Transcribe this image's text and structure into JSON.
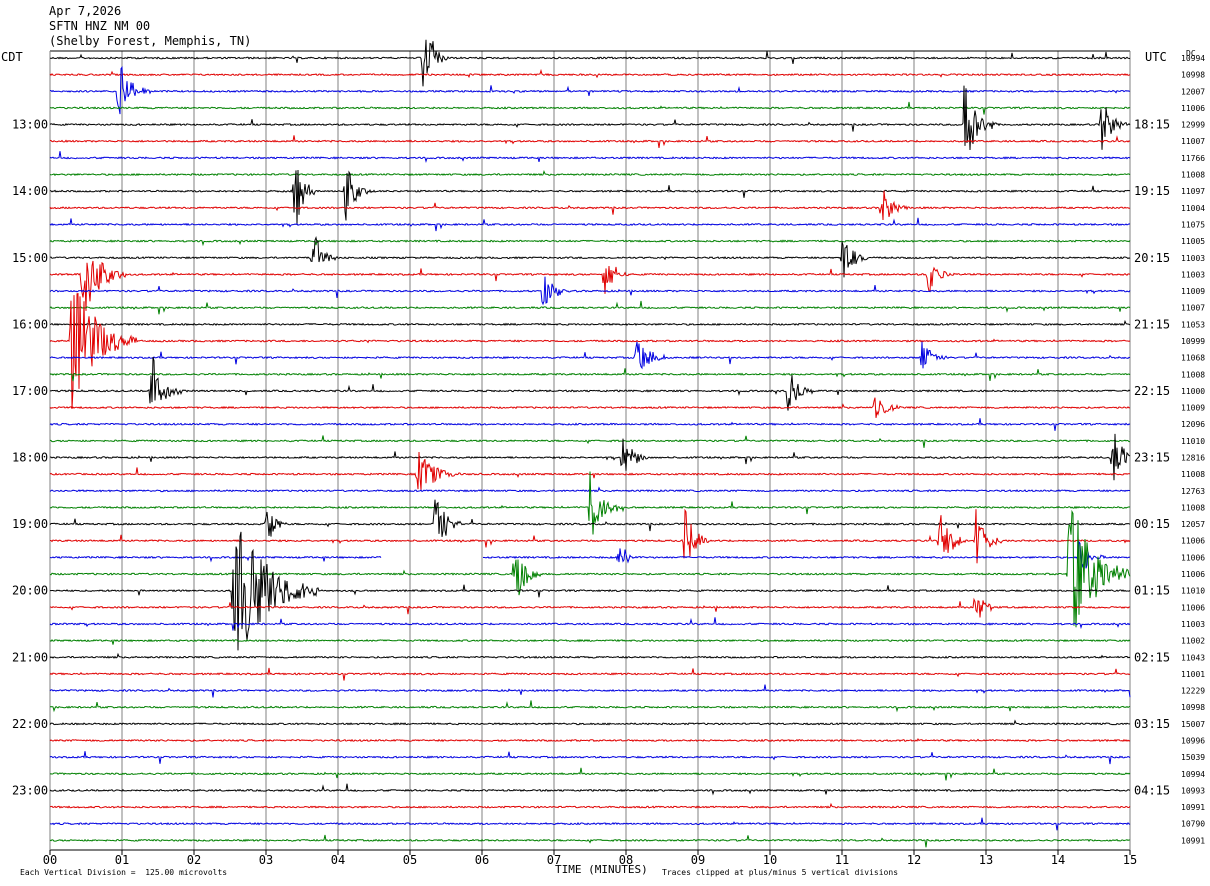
{
  "header": {
    "date": "Apr 7,2026",
    "station": "SFTN HNZ NM 00",
    "location": "(Shelby Forest, Memphis, TN)"
  },
  "left_zone": "CDT",
  "right_zone": "UTC",
  "dc_label": "DC",
  "footer": {
    "scale": "Each Vertical Division =  125.00 microvolts",
    "xlabel": "TIME (MINUTES)",
    "clip_note": "Traces clipped at plus/minus 5 vertical divisions"
  },
  "colors": {
    "trace_cycle": [
      "#000000",
      "#e00000",
      "#0000e0",
      "#008000"
    ],
    "grid": "#808080"
  },
  "chart_data": {
    "type": "line",
    "title": "SFTN HNZ NM 00",
    "xlabel": "TIME (MINUTES)",
    "x_ticks": [
      "00",
      "01",
      "02",
      "03",
      "04",
      "05",
      "06",
      "07",
      "08",
      "09",
      "10",
      "11",
      "12",
      "13",
      "14",
      "15"
    ],
    "xlim": [
      0,
      15
    ],
    "trace_count": 48,
    "left_hour_labels": [
      {
        "trace": 4,
        "label": "13:00"
      },
      {
        "trace": 8,
        "label": "14:00"
      },
      {
        "trace": 12,
        "label": "15:00"
      },
      {
        "trace": 16,
        "label": "16:00"
      },
      {
        "trace": 20,
        "label": "17:00"
      },
      {
        "trace": 24,
        "label": "18:00"
      },
      {
        "trace": 28,
        "label": "19:00"
      },
      {
        "trace": 32,
        "label": "20:00"
      },
      {
        "trace": 36,
        "label": "21:00"
      },
      {
        "trace": 40,
        "label": "22:00"
      },
      {
        "trace": 44,
        "label": "23:00"
      }
    ],
    "right_hour_labels": [
      {
        "trace": 4,
        "label": "18:15"
      },
      {
        "trace": 8,
        "label": "19:15"
      },
      {
        "trace": 12,
        "label": "20:15"
      },
      {
        "trace": 16,
        "label": "21:15"
      },
      {
        "trace": 20,
        "label": "22:15"
      },
      {
        "trace": 24,
        "label": "23:15"
      },
      {
        "trace": 28,
        "label": "00:15"
      },
      {
        "trace": 32,
        "label": "01:15"
      },
      {
        "trace": 36,
        "label": "02:15"
      },
      {
        "trace": 40,
        "label": "03:15"
      },
      {
        "trace": 44,
        "label": "04:15"
      }
    ],
    "dc_offsets": [
      "10994",
      "10998",
      "12007",
      "11006",
      "12999",
      "11007",
      "11766",
      "11008",
      "11097",
      "11004",
      "11075",
      "11005",
      "11003",
      "11003",
      "11009",
      "11007",
      "11053",
      "10999",
      "11068",
      "11008",
      "11000",
      "11009",
      "12096",
      "11010",
      "12816",
      "11008",
      "12763",
      "11008",
      "12057",
      "11006",
      "11006",
      "11006",
      "11010",
      "11006",
      "11003",
      "11002",
      "11043",
      "11001",
      "12229",
      "10998",
      "15007",
      "10996",
      "15039",
      "10994",
      "10993",
      "10991",
      "10790",
      "10991"
    ],
    "events": [
      {
        "trace": 0,
        "minute": 5.18,
        "amp": 2.2,
        "dur": 0.12
      },
      {
        "trace": 2,
        "minute": 0.95,
        "amp": 2.0,
        "dur": 0.15
      },
      {
        "trace": 4,
        "minute": 12.7,
        "amp": 3.0,
        "dur": 0.15
      },
      {
        "trace": 4,
        "minute": 14.6,
        "amp": 2.0,
        "dur": 0.12
      },
      {
        "trace": 8,
        "minute": 3.4,
        "amp": 2.8,
        "dur": 0.1
      },
      {
        "trace": 8,
        "minute": 4.1,
        "amp": 2.0,
        "dur": 0.12
      },
      {
        "trace": 9,
        "minute": 11.55,
        "amp": 1.5,
        "dur": 0.12
      },
      {
        "trace": 12,
        "minute": 3.65,
        "amp": 1.8,
        "dur": 0.12
      },
      {
        "trace": 12,
        "minute": 11.0,
        "amp": 1.8,
        "dur": 0.12
      },
      {
        "trace": 13,
        "minute": 0.45,
        "amp": 3.0,
        "dur": 0.2
      },
      {
        "trace": 13,
        "minute": 7.7,
        "amp": 1.6,
        "dur": 0.12
      },
      {
        "trace": 13,
        "minute": 12.2,
        "amp": 1.3,
        "dur": 0.12
      },
      {
        "trace": 14,
        "minute": 6.85,
        "amp": 1.5,
        "dur": 0.12
      },
      {
        "trace": 17,
        "minute": 0.3,
        "amp": 4.5,
        "dur": 0.3
      },
      {
        "trace": 18,
        "minute": 8.15,
        "amp": 1.5,
        "dur": 0.15
      },
      {
        "trace": 18,
        "minute": 12.1,
        "amp": 1.2,
        "dur": 0.12
      },
      {
        "trace": 20,
        "minute": 1.4,
        "amp": 2.6,
        "dur": 0.15
      },
      {
        "trace": 20,
        "minute": 10.25,
        "amp": 1.6,
        "dur": 0.12
      },
      {
        "trace": 21,
        "minute": 11.45,
        "amp": 1.3,
        "dur": 0.12
      },
      {
        "trace": 24,
        "minute": 7.95,
        "amp": 1.6,
        "dur": 0.12
      },
      {
        "trace": 24,
        "minute": 14.75,
        "amp": 2.0,
        "dur": 0.12
      },
      {
        "trace": 25,
        "minute": 5.1,
        "amp": 1.6,
        "dur": 0.2
      },
      {
        "trace": 27,
        "minute": 7.5,
        "amp": 2.4,
        "dur": 0.15
      },
      {
        "trace": 28,
        "minute": 3.0,
        "amp": 1.5,
        "dur": 0.1
      },
      {
        "trace": 28,
        "minute": 5.35,
        "amp": 2.5,
        "dur": 0.12
      },
      {
        "trace": 29,
        "minute": 8.8,
        "amp": 2.4,
        "dur": 0.12
      },
      {
        "trace": 29,
        "minute": 12.35,
        "amp": 2.6,
        "dur": 0.12
      },
      {
        "trace": 29,
        "minute": 12.85,
        "amp": 2.4,
        "dur": 0.12
      },
      {
        "trace": 30,
        "minute": 7.9,
        "amp": 1.2,
        "dur": 0.1
      },
      {
        "trace": 30,
        "minute": 14.3,
        "amp": 1.4,
        "dur": 0.12
      },
      {
        "trace": 31,
        "minute": 6.45,
        "amp": 2.6,
        "dur": 0.12
      },
      {
        "trace": 31,
        "minute": 14.15,
        "amp": 5.0,
        "dur": 0.3
      },
      {
        "trace": 32,
        "minute": 2.55,
        "amp": 5.0,
        "dur": 0.4
      },
      {
        "trace": 33,
        "minute": 12.85,
        "amp": 1.5,
        "dur": 0.1
      }
    ],
    "gaps": [
      {
        "trace": 30,
        "from": 4.6,
        "to": 6.0
      }
    ]
  }
}
